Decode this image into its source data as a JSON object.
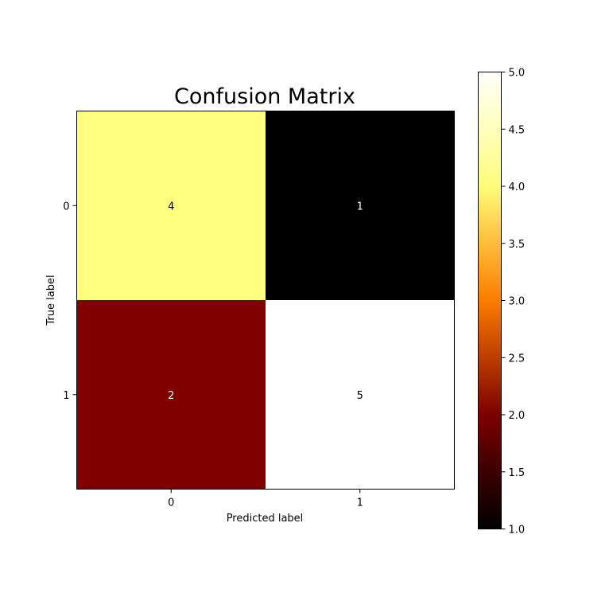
{
  "chart_data": {
    "type": "heatmap",
    "title": "Confusion Matrix",
    "xlabel": "Predicted label",
    "ylabel": "True label",
    "x_categories": [
      "0",
      "1"
    ],
    "y_categories": [
      "0",
      "1"
    ],
    "values": [
      [
        4,
        1
      ],
      [
        2,
        5
      ]
    ],
    "colormap": "afmhot",
    "colorbar": {
      "range": [
        1.0,
        5.0
      ],
      "ticks": [
        "1.0",
        "1.5",
        "2.0",
        "2.5",
        "3.0",
        "3.5",
        "4.0",
        "4.5",
        "5.0"
      ]
    },
    "grid": false
  }
}
